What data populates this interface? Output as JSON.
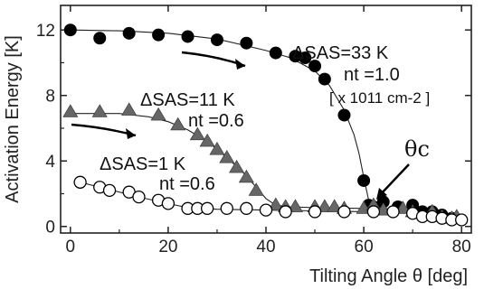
{
  "chart_data": {
    "type": "scatter",
    "xlabel": "Tilting Angle θ [deg]",
    "ylabel": "Activation Energy  [K]",
    "xlim": [
      -2,
      82
    ],
    "ylim": [
      -0.4,
      13.5
    ],
    "x_ticks": [
      "0",
      "20",
      "40",
      "60",
      "80"
    ],
    "y_ticks": [
      "0",
      "4",
      "8",
      "12"
    ],
    "x_tick_values": [
      0,
      20,
      40,
      60,
      80
    ],
    "y_tick_values": [
      0,
      4,
      8,
      12
    ],
    "grid": false,
    "series": [
      {
        "marker": "circle-filled",
        "color": "#000000",
        "points": [
          [
            0,
            12.0
          ],
          [
            6,
            11.5
          ],
          [
            12,
            11.8
          ],
          [
            18,
            11.7
          ],
          [
            24,
            11.6
          ],
          [
            30,
            11.4
          ],
          [
            36,
            11.2
          ],
          [
            42,
            10.6
          ],
          [
            46,
            10.4
          ],
          [
            48,
            10.3
          ],
          [
            50,
            9.8
          ],
          [
            52,
            9.0
          ],
          [
            56,
            6.8
          ],
          [
            60,
            2.8
          ],
          [
            61,
            1.3
          ],
          [
            62,
            1.2
          ],
          [
            64,
            1.5
          ],
          [
            67,
            1.2
          ],
          [
            70,
            1.3
          ],
          [
            72,
            0.9
          ],
          [
            74,
            0.9
          ],
          [
            76,
            0.7
          ],
          [
            78,
            0.5
          ]
        ]
      },
      {
        "marker": "triangle-filled",
        "color": "#666666",
        "points": [
          [
            0,
            7.0
          ],
          [
            6,
            7.0
          ],
          [
            12,
            7.1
          ],
          [
            18,
            6.8
          ],
          [
            22,
            6.2
          ],
          [
            26,
            5.6
          ],
          [
            28,
            5.2
          ],
          [
            30,
            4.7
          ],
          [
            32,
            4.2
          ],
          [
            34,
            3.6
          ],
          [
            36,
            3.0
          ],
          [
            38,
            2.2
          ],
          [
            42,
            1.3
          ],
          [
            44,
            1.2
          ],
          [
            46,
            1.2
          ],
          [
            50,
            1.2
          ],
          [
            52,
            1.2
          ],
          [
            54,
            1.2
          ],
          [
            56,
            1.1
          ],
          [
            60,
            1.1
          ],
          [
            62,
            1.3
          ],
          [
            64,
            1.0
          ],
          [
            68,
            1.1
          ],
          [
            70,
            0.9
          ],
          [
            74,
            0.9
          ],
          [
            76,
            0.6
          ],
          [
            78,
            0.5
          ],
          [
            79,
            0.6
          ]
        ]
      },
      {
        "marker": "circle-open",
        "color": "#000000",
        "points": [
          [
            2,
            2.7
          ],
          [
            6,
            2.4
          ],
          [
            8,
            2.2
          ],
          [
            12,
            2.1
          ],
          [
            14,
            1.8
          ],
          [
            18,
            1.6
          ],
          [
            20,
            1.4
          ],
          [
            24,
            1.1
          ],
          [
            26,
            1.1
          ],
          [
            28,
            1.1
          ],
          [
            32,
            1.1
          ],
          [
            36,
            1.1
          ],
          [
            40,
            1.0
          ],
          [
            44,
            0.9
          ],
          [
            50,
            0.9
          ],
          [
            56,
            0.9
          ],
          [
            62,
            0.9
          ],
          [
            66,
            0.9
          ],
          [
            70,
            0.8
          ],
          [
            72,
            0.6
          ],
          [
            74,
            0.6
          ],
          [
            76,
            0.5
          ],
          [
            78,
            0.4
          ],
          [
            80,
            0.4
          ]
        ]
      }
    ],
    "fit_lines": [
      [
        [
          0,
          12.0
        ],
        [
          10,
          11.95
        ],
        [
          20,
          11.8
        ],
        [
          30,
          11.45
        ],
        [
          40,
          10.75
        ],
        [
          45,
          10.3
        ],
        [
          50,
          9.5
        ],
        [
          53,
          8.6
        ],
        [
          56,
          7.1
        ],
        [
          58,
          5.6
        ],
        [
          59,
          4.5
        ],
        [
          60,
          3.0
        ],
        [
          61,
          1.6
        ],
        [
          62,
          1.2
        ],
        [
          64,
          1.1
        ],
        [
          66,
          1.05
        ],
        [
          70,
          0.95
        ],
        [
          74,
          0.8
        ],
        [
          78,
          0.55
        ],
        [
          80,
          0.45
        ]
      ],
      [
        [
          0,
          6.9
        ],
        [
          10,
          6.9
        ],
        [
          16,
          6.7
        ],
        [
          20,
          6.4
        ],
        [
          24,
          5.9
        ],
        [
          28,
          5.2
        ],
        [
          32,
          4.2
        ],
        [
          35,
          3.4
        ],
        [
          38,
          2.4
        ],
        [
          40,
          1.7
        ],
        [
          42,
          1.3
        ],
        [
          45,
          1.2
        ],
        [
          50,
          1.15
        ],
        [
          60,
          1.1
        ],
        [
          70,
          0.95
        ],
        [
          76,
          0.7
        ],
        [
          80,
          0.5
        ]
      ],
      [
        [
          2,
          2.7
        ],
        [
          8,
          2.25
        ],
        [
          14,
          1.8
        ],
        [
          20,
          1.4
        ],
        [
          24,
          1.15
        ],
        [
          30,
          1.05
        ],
        [
          40,
          1.0
        ],
        [
          50,
          0.95
        ],
        [
          60,
          0.9
        ],
        [
          70,
          0.8
        ],
        [
          76,
          0.6
        ],
        [
          80,
          0.45
        ]
      ]
    ],
    "annotations": {
      "delta_33": "ΔSAS=33 K",
      "nt_10": "nt =1.0",
      "units": "[ x 1011 cm-2 ]",
      "delta_11": "ΔSAS=11 K",
      "nt_06a": "nt =0.6",
      "delta_1": "ΔSAS=1 K",
      "nt_06b": "nt =0.6",
      "theta_c": "θc"
    }
  }
}
